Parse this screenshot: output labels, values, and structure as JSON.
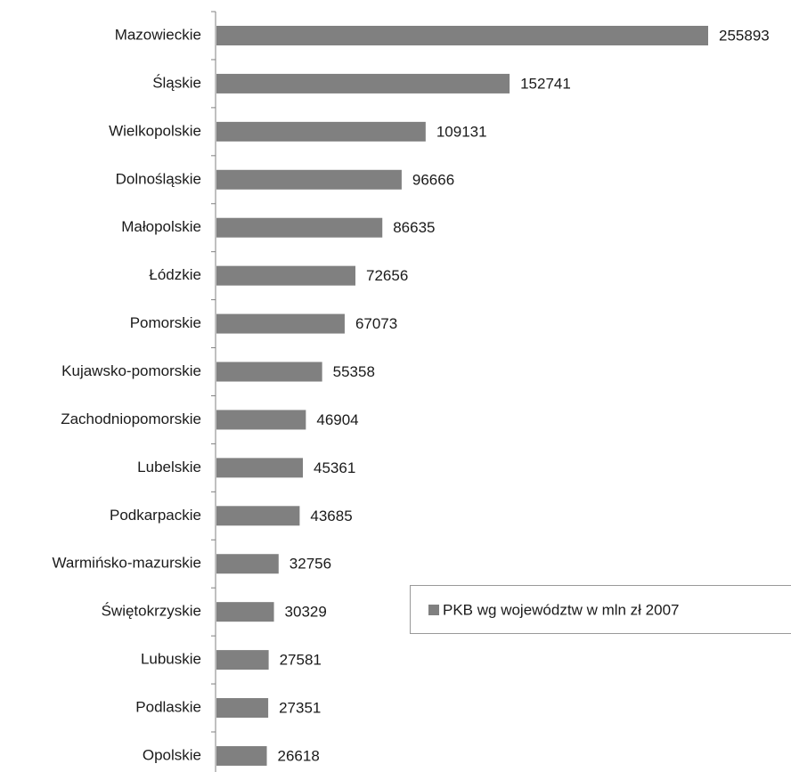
{
  "chart_data": {
    "type": "bar",
    "orientation": "horizontal",
    "categories": [
      "Mazowieckie",
      "Śląskie",
      "Wielkopolskie",
      "Dolnośląskie",
      "Małopolskie",
      "Łódzkie",
      "Pomorskie",
      "Kujawsko-pomorskie",
      "Zachodniopomorskie",
      "Lubelskie",
      "Podkarpackie",
      "Warmińsko-mazurskie",
      "Świętokrzyskie",
      "Lubuskie",
      "Podlaskie",
      "Opolskie"
    ],
    "series": [
      {
        "name": "PKB wg województw w mln zł 2007",
        "color": "#808080",
        "values": [
          255893,
          152741,
          109131,
          96666,
          86635,
          72656,
          67073,
          55358,
          46904,
          45361,
          43685,
          32756,
          30329,
          27581,
          27351,
          26618
        ]
      }
    ],
    "legend": "right"
  }
}
